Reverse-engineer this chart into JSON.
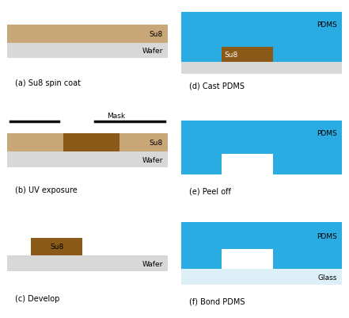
{
  "background": "#ffffff",
  "colors": {
    "su8_light": "#c8a878",
    "su8_dark": "#8B5A18",
    "wafer": "#d8d8d8",
    "pdms": "#2aace2",
    "glass": "#ddf0f8",
    "mask_line": "#111111"
  },
  "labels": {
    "a": "(a) Su8 spin coat",
    "b": "(b) UV exposure",
    "c": "(c) Develop",
    "d": "(d) Cast PDMS",
    "e": "(e) Peel off",
    "f": "(f) Bond PDMS"
  },
  "ax_positions": {
    "a": [
      0.02,
      0.7,
      0.46,
      0.26
    ],
    "b": [
      0.02,
      0.36,
      0.46,
      0.28
    ],
    "c": [
      0.02,
      0.02,
      0.46,
      0.28
    ],
    "d": [
      0.52,
      0.7,
      0.46,
      0.26
    ],
    "e": [
      0.52,
      0.36,
      0.46,
      0.26
    ],
    "f": [
      0.52,
      0.02,
      0.46,
      0.28
    ]
  }
}
